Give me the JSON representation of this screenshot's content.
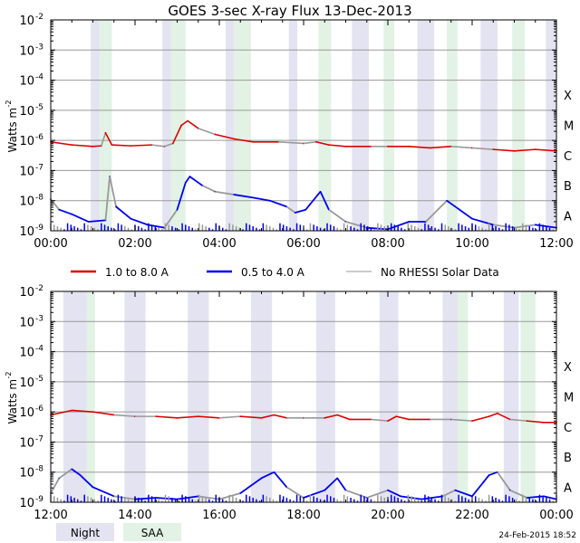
{
  "chart_data": [
    {
      "type": "line",
      "title": "GOES 3-sec X-ray Flux   13-Dec-2013",
      "ylabel": "Watts m",
      "ylabel_sup": "-2",
      "yscale": "log",
      "ylim_exp": [
        -9,
        -2
      ],
      "y_ticks": [
        {
          "base": "10",
          "exp": "-2"
        },
        {
          "base": "10",
          "exp": "-3"
        },
        {
          "base": "10",
          "exp": "-4"
        },
        {
          "base": "10",
          "exp": "-5"
        },
        {
          "base": "10",
          "exp": "-6"
        },
        {
          "base": "10",
          "exp": "-7"
        },
        {
          "base": "10",
          "exp": "-8"
        },
        {
          "base": "10",
          "exp": "-9"
        }
      ],
      "class_labels": [
        "X",
        "M",
        "C",
        "B",
        "A"
      ],
      "x_ticks": [
        "00:00",
        "02:00",
        "04:00",
        "06:00",
        "08:00",
        "10:00",
        "12:00"
      ],
      "xlim_hours": [
        0,
        12
      ],
      "night_intervals": [
        [
          0.95,
          1.15
        ],
        [
          2.65,
          2.85
        ],
        [
          4.15,
          4.35
        ],
        [
          5.65,
          5.85
        ],
        [
          7.15,
          7.55
        ],
        [
          8.7,
          9.1
        ],
        [
          10.2,
          10.6
        ],
        [
          11.75,
          12.0
        ]
      ],
      "saa_intervals": [
        [
          1.15,
          1.45
        ],
        [
          2.85,
          3.2
        ],
        [
          4.35,
          4.75
        ],
        [
          6.35,
          6.65
        ],
        [
          7.9,
          8.15
        ],
        [
          9.4,
          9.65
        ],
        [
          10.95,
          11.25
        ]
      ],
      "series": [
        {
          "name": "1.0 to 8.0 A",
          "color": "#dd0000",
          "points": [
            [
              0,
              -6.05
            ],
            [
              0.5,
              -6.15
            ],
            [
              1.0,
              -6.2
            ],
            [
              1.2,
              -6.18
            ],
            [
              1.3,
              -5.75
            ],
            [
              1.45,
              -6.15
            ],
            [
              1.9,
              -6.18
            ],
            [
              2.4,
              -6.15
            ],
            [
              2.7,
              -6.2
            ],
            [
              2.9,
              -6.1
            ],
            [
              3.1,
              -5.5
            ],
            [
              3.25,
              -5.35
            ],
            [
              3.5,
              -5.6
            ],
            [
              3.9,
              -5.8
            ],
            [
              4.35,
              -5.95
            ],
            [
              4.8,
              -6.05
            ],
            [
              5.4,
              -6.05
            ],
            [
              6.0,
              -6.1
            ],
            [
              6.3,
              -6.05
            ],
            [
              6.6,
              -6.15
            ],
            [
              7.0,
              -6.2
            ],
            [
              7.6,
              -6.2
            ],
            [
              8.0,
              -6.2
            ],
            [
              8.5,
              -6.2
            ],
            [
              9.0,
              -6.25
            ],
            [
              9.5,
              -6.2
            ],
            [
              10.0,
              -6.25
            ],
            [
              10.5,
              -6.3
            ],
            [
              11.0,
              -6.35
            ],
            [
              11.5,
              -6.3
            ],
            [
              12.0,
              -6.35
            ]
          ]
        },
        {
          "name": "0.5 to 4.0 A",
          "color": "#0000ee",
          "points": [
            [
              0,
              -7.95
            ],
            [
              0.2,
              -8.3
            ],
            [
              0.5,
              -8.45
            ],
            [
              0.9,
              -8.7
            ],
            [
              1.3,
              -8.65
            ],
            [
              1.4,
              -7.2
            ],
            [
              1.55,
              -8.2
            ],
            [
              1.9,
              -8.6
            ],
            [
              2.3,
              -8.8
            ],
            [
              2.7,
              -8.9
            ],
            [
              3.0,
              -8.3
            ],
            [
              3.2,
              -7.4
            ],
            [
              3.3,
              -7.2
            ],
            [
              3.6,
              -7.5
            ],
            [
              3.9,
              -7.7
            ],
            [
              4.35,
              -7.8
            ],
            [
              4.8,
              -7.9
            ],
            [
              5.2,
              -8.0
            ],
            [
              5.6,
              -8.2
            ],
            [
              5.8,
              -8.4
            ],
            [
              6.05,
              -8.3
            ],
            [
              6.4,
              -7.7
            ],
            [
              6.6,
              -8.3
            ],
            [
              7.0,
              -8.7
            ],
            [
              7.5,
              -8.9
            ],
            [
              8.0,
              -8.95
            ],
            [
              8.5,
              -8.7
            ],
            [
              8.9,
              -8.7
            ],
            [
              9.4,
              -8.0
            ],
            [
              9.7,
              -8.3
            ],
            [
              10.0,
              -8.6
            ],
            [
              10.5,
              -8.8
            ],
            [
              11.0,
              -8.9
            ],
            [
              11.5,
              -8.8
            ],
            [
              12.0,
              -8.9
            ]
          ]
        }
      ],
      "no_data_color": "#999999"
    },
    {
      "type": "line",
      "ylabel": "Watts m",
      "ylabel_sup": "-2",
      "yscale": "log",
      "ylim_exp": [
        -9,
        -2
      ],
      "y_ticks": [
        {
          "base": "10",
          "exp": "-2"
        },
        {
          "base": "10",
          "exp": "-3"
        },
        {
          "base": "10",
          "exp": "-4"
        },
        {
          "base": "10",
          "exp": "-5"
        },
        {
          "base": "10",
          "exp": "-6"
        },
        {
          "base": "10",
          "exp": "-7"
        },
        {
          "base": "10",
          "exp": "-8"
        },
        {
          "base": "10",
          "exp": "-9"
        }
      ],
      "class_labels": [
        "X",
        "M",
        "C",
        "B",
        "A"
      ],
      "x_ticks": [
        "12:00",
        "14:00",
        "16:00",
        "18:00",
        "20:00",
        "22:00",
        "00:00"
      ],
      "xlim_hours": [
        12,
        24
      ],
      "night_intervals": [
        [
          12.3,
          12.9
        ],
        [
          13.75,
          14.25
        ],
        [
          15.25,
          15.75
        ],
        [
          16.75,
          17.25
        ],
        [
          18.3,
          18.75
        ],
        [
          19.8,
          20.25
        ],
        [
          21.3,
          21.75
        ],
        [
          22.75,
          23.1
        ]
      ],
      "saa_intervals": [
        [
          12.85,
          13.05
        ],
        [
          21.65,
          21.9
        ],
        [
          23.15,
          23.5
        ]
      ],
      "series": [
        {
          "name": "1.0 to 8.0 A",
          "color": "#dd0000",
          "points": [
            [
              12,
              -6.1
            ],
            [
              12.5,
              -5.95
            ],
            [
              13.0,
              -6.0
            ],
            [
              13.5,
              -6.1
            ],
            [
              14.0,
              -6.15
            ],
            [
              14.5,
              -6.15
            ],
            [
              15.0,
              -6.2
            ],
            [
              15.5,
              -6.15
            ],
            [
              16.0,
              -6.2
            ],
            [
              16.5,
              -6.15
            ],
            [
              17.0,
              -6.2
            ],
            [
              17.3,
              -6.1
            ],
            [
              17.6,
              -6.2
            ],
            [
              18.0,
              -6.2
            ],
            [
              18.5,
              -6.2
            ],
            [
              18.8,
              -6.1
            ],
            [
              19.1,
              -6.25
            ],
            [
              19.6,
              -6.25
            ],
            [
              20.0,
              -6.3
            ],
            [
              20.2,
              -6.15
            ],
            [
              20.5,
              -6.25
            ],
            [
              21.0,
              -6.25
            ],
            [
              21.5,
              -6.25
            ],
            [
              22.0,
              -6.3
            ],
            [
              22.4,
              -6.15
            ],
            [
              22.6,
              -6.05
            ],
            [
              22.9,
              -6.25
            ],
            [
              23.3,
              -6.3
            ],
            [
              23.7,
              -6.35
            ],
            [
              24.0,
              -6.35
            ]
          ]
        },
        {
          "name": "0.5 to 4.0 A",
          "color": "#0000ee",
          "points": [
            [
              12,
              -8.7
            ],
            [
              12.2,
              -8.2
            ],
            [
              12.5,
              -7.9
            ],
            [
              12.7,
              -8.1
            ],
            [
              13.0,
              -8.5
            ],
            [
              13.5,
              -8.8
            ],
            [
              14.0,
              -8.9
            ],
            [
              14.5,
              -8.85
            ],
            [
              15.0,
              -8.9
            ],
            [
              15.5,
              -8.8
            ],
            [
              16.0,
              -8.9
            ],
            [
              16.5,
              -8.7
            ],
            [
              17.0,
              -8.2
            ],
            [
              17.3,
              -8.0
            ],
            [
              17.6,
              -8.5
            ],
            [
              18.0,
              -8.85
            ],
            [
              18.5,
              -8.6
            ],
            [
              18.8,
              -8.2
            ],
            [
              19.0,
              -8.6
            ],
            [
              19.5,
              -8.85
            ],
            [
              20.0,
              -8.6
            ],
            [
              20.3,
              -8.8
            ],
            [
              20.8,
              -8.9
            ],
            [
              21.3,
              -8.8
            ],
            [
              21.6,
              -8.6
            ],
            [
              22.0,
              -8.8
            ],
            [
              22.4,
              -8.1
            ],
            [
              22.6,
              -8.0
            ],
            [
              22.9,
              -8.6
            ],
            [
              23.3,
              -8.85
            ],
            [
              23.7,
              -8.8
            ],
            [
              24.0,
              -8.9
            ]
          ]
        }
      ],
      "no_data_color": "#999999"
    }
  ],
  "legend": [
    {
      "label": "1.0 to 8.0 A",
      "color": "#dd0000"
    },
    {
      "label": "0.5 to 4.0 A",
      "color": "#0000ee"
    },
    {
      "label": "No RHESSI Solar Data",
      "color": "#999999"
    }
  ],
  "key": {
    "night_label": "Night",
    "night_color": "#e3e3f2",
    "saa_label": "SAA",
    "saa_color": "#e2f2e4"
  },
  "timestamp": "24-Feb-2015 18:52"
}
